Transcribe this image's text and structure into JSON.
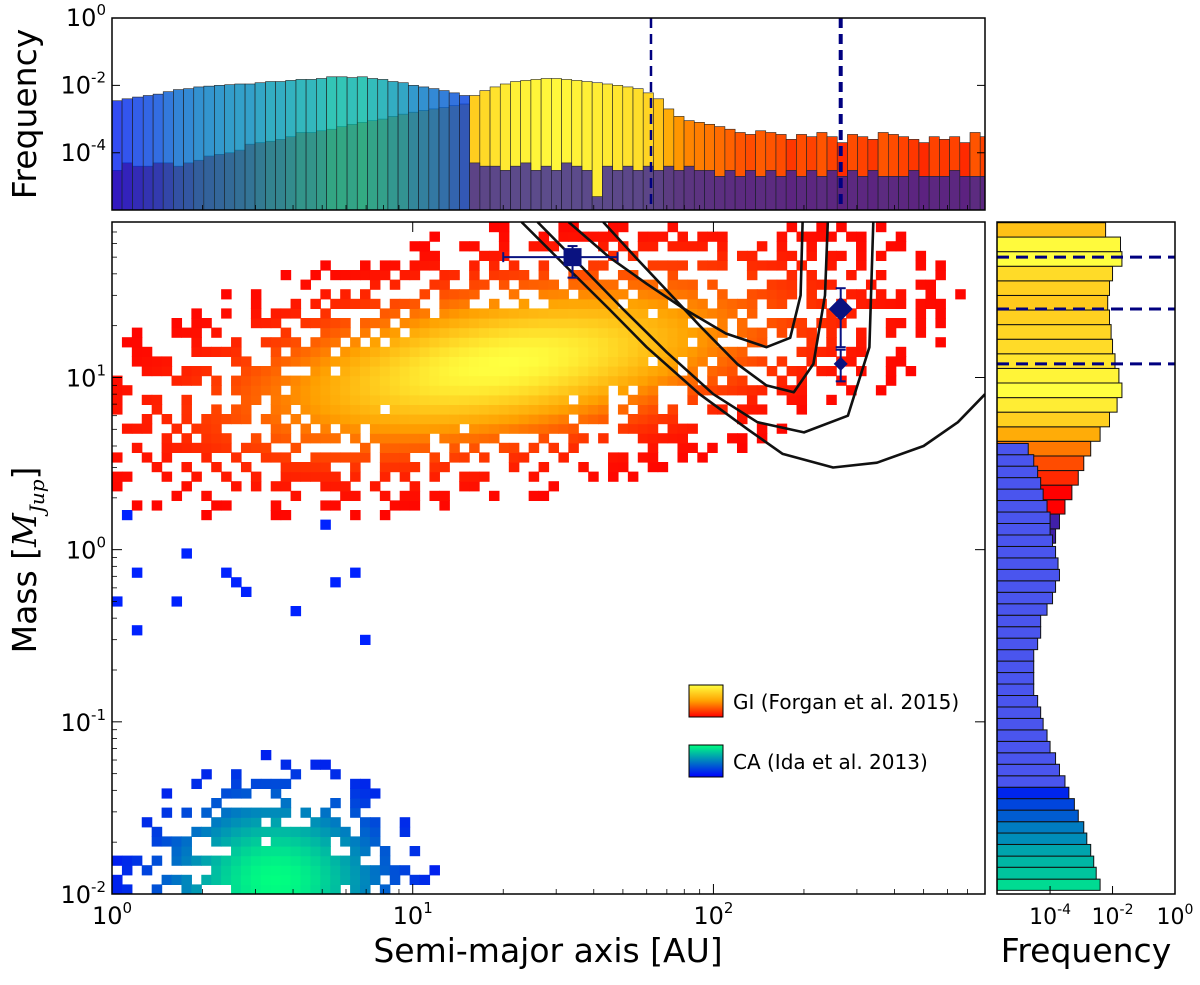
{
  "chart_data": [
    {
      "type": "scatter",
      "panel": "main",
      "xlabel": "Semi-major axis [AU]",
      "ylabel": "Mass [M_Jup]",
      "ylabel_parts": {
        "text": "Mass [",
        "symbol": "M",
        "subscript": "Jup",
        "close": "]"
      },
      "x_scale": "log",
      "y_scale": "log",
      "xlim": [
        1,
        800
      ],
      "ylim": [
        0.01,
        80
      ],
      "x_ticks": [
        1,
        10,
        100
      ],
      "x_tick_labels": [
        {
          "base": "10",
          "exp": "0"
        },
        {
          "base": "10",
          "exp": "1"
        },
        {
          "base": "10",
          "exp": "2"
        }
      ],
      "y_ticks": [
        0.01,
        0.1,
        1,
        10
      ],
      "y_tick_labels": [
        {
          "base": "10",
          "exp": "-2"
        },
        {
          "base": "10",
          "exp": "-1"
        },
        {
          "base": "10",
          "exp": "0"
        },
        {
          "base": "10",
          "exp": "1"
        }
      ],
      "legend_position": "lower-right",
      "series": [
        {
          "name": "GI (Forgan et al. 2015)",
          "colormap": "autumn",
          "colors": [
            "#ff0000",
            "#ffa000",
            "#ffff40"
          ],
          "density_peak_a_au": 20,
          "density_peak_mass_mjup": 12
        },
        {
          "name": "CA (Ida et al. 2013)",
          "colormap": "winter",
          "colors": [
            "#0000ff",
            "#00ff80"
          ],
          "density_peak_a_au": 3.5,
          "density_peak_mass_mjup": 0.012
        }
      ],
      "observed_planets": [
        {
          "a": 34,
          "m": 50,
          "a_err": [
            20,
            48
          ],
          "m_err": [
            38,
            58
          ],
          "marker": "square"
        },
        {
          "a": 265,
          "m": 25,
          "m_err": [
            15,
            33
          ],
          "marker": "diamond"
        },
        {
          "a": 265,
          "m": 12,
          "m_err": [
            9.5,
            14.5
          ],
          "marker": "small-diamond"
        }
      ],
      "detection_limit_curves": [
        [
          [
            33,
            80
          ],
          [
            45,
            50
          ],
          [
            60,
            35
          ],
          [
            80,
            25
          ],
          [
            110,
            18
          ],
          [
            150,
            15
          ],
          [
            180,
            17
          ],
          [
            195,
            30
          ],
          [
            198,
            80
          ]
        ],
        [
          [
            43,
            80
          ],
          [
            55,
            50
          ],
          [
            70,
            32
          ],
          [
            90,
            20
          ],
          [
            120,
            12
          ],
          [
            150,
            9
          ],
          [
            185,
            8.2
          ],
          [
            215,
            12
          ],
          [
            235,
            30
          ],
          [
            240,
            80
          ]
        ],
        [
          [
            26,
            80
          ],
          [
            36,
            45
          ],
          [
            50,
            25
          ],
          [
            70,
            14
          ],
          [
            100,
            8
          ],
          [
            140,
            5.5
          ],
          [
            200,
            4.8
          ],
          [
            280,
            6
          ],
          [
            330,
            15
          ],
          [
            340,
            80
          ]
        ],
        [
          [
            23,
            80
          ],
          [
            32,
            45
          ],
          [
            45,
            25
          ],
          [
            60,
            15
          ],
          [
            90,
            8
          ],
          [
            130,
            5
          ],
          [
            170,
            3.6
          ],
          [
            250,
            3
          ],
          [
            350,
            3.2
          ],
          [
            500,
            4
          ],
          [
            650,
            5.5
          ],
          [
            800,
            8
          ]
        ]
      ],
      "reference_masses": [
        50,
        25,
        12
      ],
      "reference_separations": [
        62,
        265
      ]
    },
    {
      "type": "bar",
      "panel": "top-histogram",
      "ylabel": "Frequency",
      "x_scale": "log",
      "y_scale": "log",
      "xlim": [
        1,
        800
      ],
      "ylim": [
        2e-06,
        1
      ],
      "y_ticks": [
        0.0001,
        0.01,
        1
      ],
      "y_tick_labels": [
        {
          "base": "10",
          "exp": "-4"
        },
        {
          "base": "10",
          "exp": "-2"
        },
        {
          "base": "10",
          "exp": "0"
        }
      ],
      "series": [
        {
          "name": "GI (Forgan et al. 2015)",
          "x": [
            1.0,
            1.08,
            1.17,
            1.27,
            1.37,
            1.48,
            1.6,
            1.73,
            1.87,
            2.02,
            2.19,
            2.37,
            2.56,
            2.77,
            2.99,
            3.24,
            3.5,
            3.78,
            4.09,
            4.42,
            4.78,
            5.17,
            5.59,
            6.05,
            6.54,
            7.07,
            7.65,
            8.27,
            8.94,
            9.67,
            10.46,
            11.31,
            12.23,
            13.22,
            14.3,
            15.46,
            16.72,
            18.08,
            19.55,
            21.14,
            22.86,
            24.72,
            26.73,
            28.9,
            31.25,
            33.79,
            36.54,
            39.51,
            42.72,
            46.2,
            49.95,
            54.02,
            58.41,
            63.16,
            68.3,
            73.85,
            79.86,
            86.36,
            93.38,
            100.97,
            109.19,
            118.07,
            127.67,
            138.05,
            149.28,
            161.42,
            174.55,
            188.75,
            204.1,
            220.7,
            238.65,
            258.06,
            279.05,
            301.75,
            326.29,
            352.83,
            381.52,
            412.55,
            446.1,
            482.39,
            521.62,
            564.05,
            609.93,
            659.54,
            713.18,
            771.19
          ],
          "values": [
            3e-05,
            5e-05,
            4e-05,
            4e-05,
            5e-05,
            5e-05,
            4e-05,
            5e-05,
            6e-05,
            8e-05,
            9e-05,
            0.0001,
            0.00012,
            0.00018,
            0.0002,
            0.00022,
            0.00025,
            0.0003,
            0.0004,
            0.0004,
            0.00045,
            0.0005,
            0.0006,
            0.0007,
            0.0008,
            0.0009,
            0.001,
            0.0012,
            0.0014,
            0.0016,
            0.0018,
            0.002,
            0.0022,
            0.0025,
            0.0028,
            0.005,
            0.007,
            0.009,
            0.011,
            0.013,
            0.014,
            0.015,
            0.016,
            0.016,
            0.015,
            0.014,
            0.013,
            0.012,
            0.011,
            0.01,
            0.009,
            0.008,
            0.006,
            0.004,
            0.002,
            0.0012,
            0.0009,
            0.0008,
            0.0007,
            0.0006,
            0.0005,
            0.0004,
            0.00035,
            0.00045,
            0.0004,
            0.00035,
            0.00025,
            0.00035,
            0.0003,
            0.0004,
            0.0003,
            0.0002,
            0.00035,
            0.0003,
            0.00025,
            0.0004,
            0.00035,
            0.0003,
            0.00025,
            0.0002,
            0.0003,
            0.00025,
            0.0003,
            0.0002,
            0.0004,
            0.0003
          ]
        },
        {
          "name": "CA (Ida et al. 2013)",
          "x": [
            1.0,
            1.08,
            1.17,
            1.27,
            1.37,
            1.48,
            1.6,
            1.73,
            1.87,
            2.02,
            2.19,
            2.37,
            2.56,
            2.77,
            2.99,
            3.24,
            3.5,
            3.78,
            4.09,
            4.42,
            4.78,
            5.17,
            5.59,
            6.05,
            6.54,
            7.07,
            7.65,
            8.27,
            8.94,
            9.67,
            10.46,
            11.31,
            12.23,
            13.22,
            14.3,
            15.46,
            16.72,
            18.08,
            19.55,
            21.14,
            22.86,
            24.72,
            26.73,
            28.9,
            31.25,
            33.79,
            36.54,
            39.51,
            42.72,
            46.2,
            49.95,
            54.02,
            58.41,
            63.16,
            68.3,
            73.85,
            79.86,
            86.36,
            93.38,
            100.97,
            109.19,
            118.07,
            127.67,
            138.05,
            149.28,
            161.42,
            174.55,
            188.75,
            204.1,
            220.7,
            238.65,
            258.06,
            279.05,
            301.75,
            326.29,
            352.83,
            381.52,
            412.55,
            446.1,
            482.39,
            521.62,
            564.05,
            609.93,
            659.54,
            713.18,
            771.19
          ],
          "values": [
            0.0035,
            0.004,
            0.0045,
            0.005,
            0.0055,
            0.0065,
            0.0075,
            0.008,
            0.009,
            0.0095,
            0.01,
            0.0105,
            0.011,
            0.011,
            0.012,
            0.013,
            0.013,
            0.014,
            0.015,
            0.015,
            0.016,
            0.018,
            0.018,
            0.017,
            0.018,
            0.016,
            0.015,
            0.013,
            0.012,
            0.01,
            0.009,
            0.008,
            0.007,
            0.006,
            0.005,
            5e-05,
            4e-05,
            4e-05,
            3e-05,
            4e-05,
            5e-05,
            3e-05,
            4e-05,
            3e-05,
            5e-05,
            4e-05,
            3e-05,
            5e-06,
            4e-05,
            3e-05,
            4e-05,
            3e-05,
            4e-05,
            3e-05,
            4e-05,
            3e-05,
            4e-05,
            3e-05,
            3e-05,
            2e-05,
            3e-05,
            2e-05,
            3e-05,
            2e-05,
            3e-05,
            2e-05,
            3e-05,
            2e-05,
            3e-05,
            2e-05,
            3e-05,
            2e-05,
            3e-05,
            2e-05,
            3e-05,
            2e-05,
            2e-05,
            2e-05,
            3e-05,
            2e-05,
            2e-05,
            2e-05,
            3e-05,
            2e-05,
            2e-05,
            2e-05
          ]
        }
      ],
      "reference_separations": [
        62,
        265
      ]
    },
    {
      "type": "bar",
      "panel": "right-histogram",
      "orientation": "horizontal",
      "xlabel": "Frequency",
      "x_scale": "log",
      "y_scale": "log",
      "xlim": [
        2e-06,
        1
      ],
      "ylim": [
        0.01,
        80
      ],
      "x_ticks": [
        0.0001,
        0.01,
        1
      ],
      "x_tick_labels": [
        {
          "base": "10",
          "exp": "-4"
        },
        {
          "base": "10",
          "exp": "-2"
        },
        {
          "base": "10",
          "exp": "0"
        }
      ],
      "series": [
        {
          "name": "GI (Forgan et al. 2015)",
          "y": [
            0.9,
            1.09,
            1.32,
            1.61,
            1.95,
            2.37,
            2.88,
            3.5,
            4.26,
            5.17,
            6.29,
            7.64,
            9.29,
            11.29,
            13.73,
            16.68,
            20.28,
            24.65,
            29.96,
            36.42,
            44.27,
            53.81,
            65.41
          ],
          "values": [
            0.0001,
            0.00015,
            0.0002,
            0.0003,
            0.0005,
            0.0008,
            0.0012,
            0.002,
            0.004,
            0.008,
            0.014,
            0.02,
            0.016,
            0.012,
            0.01,
            0.009,
            0.008,
            0.007,
            0.008,
            0.01,
            0.02,
            0.018,
            0.006
          ]
        },
        {
          "name": "CA (Ida et al. 2013)",
          "y": [
            0.0105,
            0.0122,
            0.0143,
            0.0166,
            0.0194,
            0.0226,
            0.0263,
            0.0307,
            0.0358,
            0.0417,
            0.0486,
            0.0567,
            0.0661,
            0.077,
            0.0898,
            0.1047,
            0.122,
            0.1422,
            0.1658,
            0.1933,
            0.2253,
            0.2626,
            0.3062,
            0.3569,
            0.4161,
            0.485,
            0.5654,
            0.6591,
            0.7683,
            0.8957,
            1.044,
            1.217,
            1.419,
            1.654,
            1.929,
            2.248,
            2.621,
            3.055,
            3.561
          ],
          "values": [
            0.004,
            0.003,
            0.0025,
            0.002,
            0.0015,
            0.0012,
            0.0008,
            0.0006,
            0.0004,
            0.0003,
            0.0002,
            0.00015,
            0.0001,
            8e-05,
            6e-05,
            5e-05,
            4e-05,
            3e-05,
            3e-05,
            3e-05,
            3e-05,
            4e-05,
            5e-05,
            5e-05,
            8e-05,
            0.00012,
            0.00015,
            0.0002,
            0.00018,
            0.00015,
            0.00012,
            0.0001,
            0.0001,
            8e-05,
            6e-05,
            5e-05,
            4e-05,
            3e-05,
            2e-05
          ]
        }
      ],
      "reference_masses": [
        50,
        25,
        12
      ]
    }
  ]
}
